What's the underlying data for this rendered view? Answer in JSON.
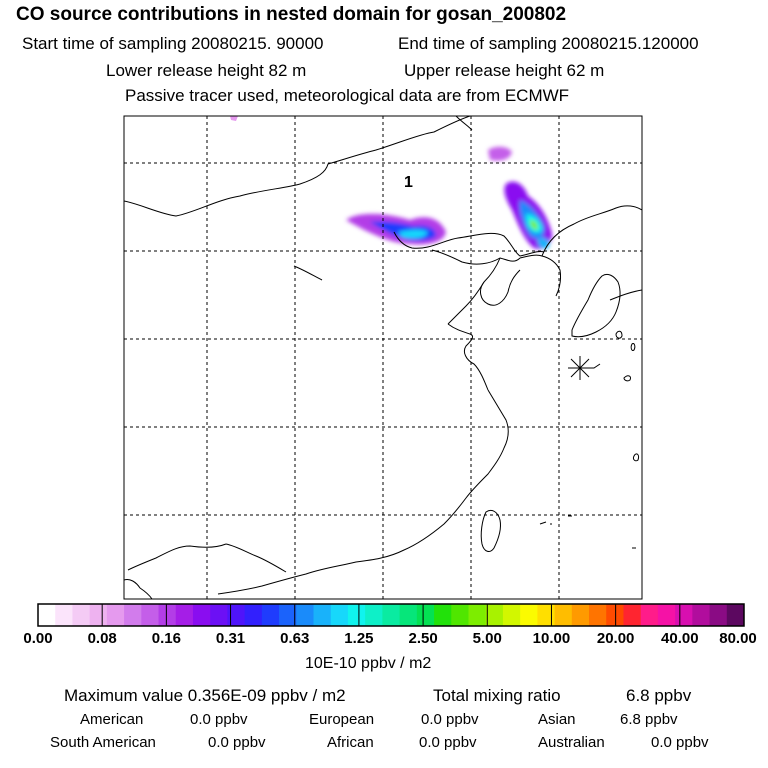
{
  "header": {
    "title": "CO  source contributions in nested domain for gosan_200802",
    "start": "Start time of sampling 20080215. 90000",
    "end": "End time of sampling 20080215.120000",
    "lower": "Lower release height   82 m",
    "upper": "Upper release height   62 m",
    "tracer": "Passive tracer used, meteorological data are from ECMWF"
  },
  "map": {
    "region_label": "1"
  },
  "colorbar": {
    "colors": [
      "#ffffff",
      "#fbe4fb",
      "#f4cbf5",
      "#eeb2f0",
      "#e59aee",
      "#d27cec",
      "#c45ee9",
      "#b33de7",
      "#a51ee7",
      "#8a0df0",
      "#6c10f5",
      "#4f14fa",
      "#3220fd",
      "#1f3cfd",
      "#1b63fb",
      "#1a8bfa",
      "#19b2fa",
      "#17d8fb",
      "#10f4ee",
      "#0ef0c8",
      "#0aeba1",
      "#06e67a",
      "#04e153",
      "#22e10a",
      "#50e600",
      "#7ded00",
      "#a8f200",
      "#d2f700",
      "#fbfb00",
      "#ffdf00",
      "#ffbd00",
      "#ff9a00",
      "#ff7400",
      "#ff4b00",
      "#ff2530",
      "#ff1c8a",
      "#f512a6",
      "#d80fb0",
      "#b10d9d",
      "#8a0b84",
      "#5c0860"
    ],
    "labels": [
      "0.00",
      "0.08",
      "0.16",
      "0.31",
      "0.63",
      "1.25",
      "2.50",
      "5.00",
      "10.00",
      "20.00",
      "40.00",
      "80.00"
    ],
    "units": "10E-10 ppbv / m2"
  },
  "summary": {
    "max_line": "Maximum value  0.356E-09 ppbv / m2",
    "total_label": "Total mixing ratio",
    "total_value": "6.8 ppbv",
    "american_label": "American",
    "american_value": "0.0 ppbv",
    "european_label": "European",
    "european_value": "0.0 ppbv",
    "asian_label": "Asian",
    "asian_value": "6.8 ppbv",
    "south_american_label": "South American",
    "south_american_value": "0.0 ppbv",
    "african_label": "African",
    "african_value": "0.0 ppbv",
    "australian_label": "Australian",
    "australian_value": "0.0 ppbv"
  }
}
